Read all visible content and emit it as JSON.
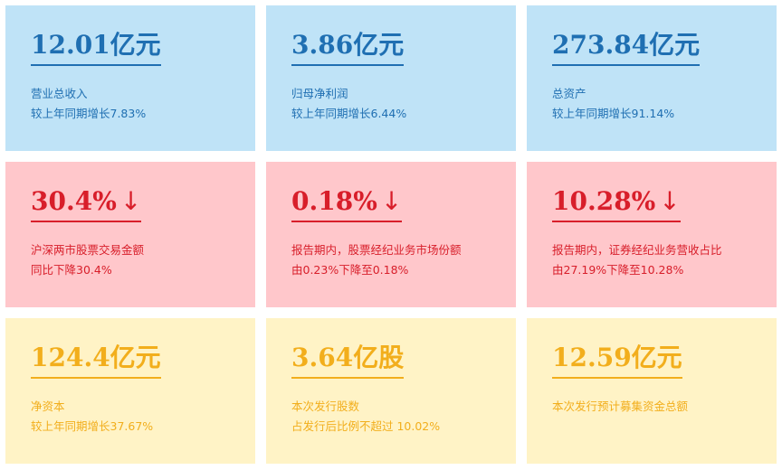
{
  "cards": [
    {
      "value": "12.01亿元",
      "arrow": "",
      "line1": "营业总收入",
      "line2": "较上年同期增长7.83%"
    },
    {
      "value": "3.86亿元",
      "arrow": "",
      "line1": "归母净利润",
      "line2": "较上年同期增长6.44%"
    },
    {
      "value": "273.84亿元",
      "arrow": "",
      "line1": "总资产",
      "line2": "较上年同期增长91.14%"
    },
    {
      "value": "30.4%",
      "arrow": "↓",
      "line1": "沪深两市股票交易金额",
      "line2": "同比下降30.4%"
    },
    {
      "value": "0.18%",
      "arrow": "↓",
      "line1": "报告期内，股票经纪业务市场份额",
      "line2": "由0.23%下降至0.18%"
    },
    {
      "value": "10.28%",
      "arrow": "↓",
      "line1": "报告期内，证券经纪业务营收占比",
      "line2": "由27.19%下降至10.28%"
    },
    {
      "value": "124.4亿元",
      "arrow": "",
      "line1": "净资本",
      "line2": "较上年同期增长37.67%"
    },
    {
      "value": "3.64亿股",
      "arrow": "",
      "line1": "本次发行股数",
      "line2": "占发行后比例不超过 10.02%"
    },
    {
      "value": "12.59亿元",
      "arrow": "",
      "line1": "本次发行预计募集资金总额",
      "line2": ""
    }
  ],
  "colors": {
    "blue_bg": "#bfe3f7",
    "blue_text": "#1f6fb2",
    "red_bg": "#ffc7cb",
    "red_text": "#d81e2a",
    "yellow_bg": "#fff3c6",
    "yellow_text": "#f2ae1c"
  }
}
